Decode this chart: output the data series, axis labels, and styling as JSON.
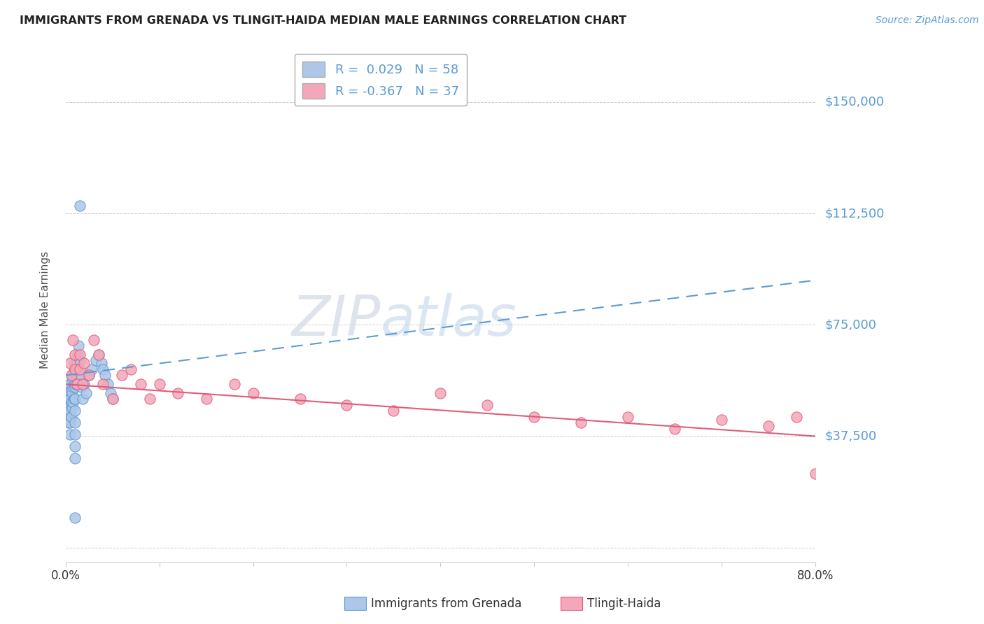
{
  "title": "IMMIGRANTS FROM GRENADA VS TLINGIT-HAIDA MEDIAN MALE EARNINGS CORRELATION CHART",
  "source": "Source: ZipAtlas.com",
  "ylabel": "Median Male Earnings",
  "yticks": [
    0,
    37500,
    75000,
    112500,
    150000
  ],
  "ytick_labels": [
    "",
    "$37,500",
    "$75,000",
    "$112,500",
    "$150,000"
  ],
  "xlim": [
    0.0,
    0.8
  ],
  "ylim": [
    -5000,
    165000
  ],
  "legend1_label": "R =  0.029   N = 58",
  "legend2_label": "R = -0.367   N = 37",
  "legend1_color": "#aec6e8",
  "legend2_color": "#f4a7b9",
  "line1_color": "#5b9bd5",
  "line2_color": "#e05c7a",
  "background": "#ffffff",
  "blue_line_y0": 58000,
  "blue_line_y1": 90000,
  "pink_line_y0": 55000,
  "pink_line_y1": 37500,
  "blue_x": [
    0.003,
    0.003,
    0.003,
    0.003,
    0.004,
    0.004,
    0.004,
    0.005,
    0.005,
    0.005,
    0.005,
    0.005,
    0.006,
    0.006,
    0.006,
    0.007,
    0.007,
    0.007,
    0.008,
    0.008,
    0.008,
    0.009,
    0.009,
    0.009,
    0.01,
    0.01,
    0.01,
    0.01,
    0.01,
    0.01,
    0.01,
    0.01,
    0.01,
    0.011,
    0.011,
    0.012,
    0.012,
    0.013,
    0.013,
    0.014,
    0.015,
    0.016,
    0.017,
    0.018,
    0.02,
    0.022,
    0.025,
    0.028,
    0.032,
    0.035,
    0.038,
    0.04,
    0.042,
    0.045,
    0.048,
    0.05,
    0.015,
    0.01
  ],
  "blue_y": [
    52000,
    48000,
    45000,
    42000,
    50000,
    47000,
    43000,
    55000,
    50000,
    46000,
    42000,
    38000,
    53000,
    49000,
    44000,
    57000,
    52000,
    47000,
    58000,
    54000,
    49000,
    60000,
    55000,
    50000,
    62000,
    58000,
    54000,
    50000,
    46000,
    42000,
    38000,
    34000,
    30000,
    60000,
    55000,
    62000,
    57000,
    65000,
    60000,
    68000,
    63000,
    58000,
    54000,
    50000,
    55000,
    52000,
    58000,
    60000,
    63000,
    65000,
    62000,
    60000,
    58000,
    55000,
    52000,
    50000,
    115000,
    10000
  ],
  "pink_x": [
    0.005,
    0.006,
    0.008,
    0.01,
    0.01,
    0.012,
    0.015,
    0.015,
    0.018,
    0.02,
    0.025,
    0.03,
    0.035,
    0.04,
    0.05,
    0.06,
    0.07,
    0.08,
    0.09,
    0.1,
    0.12,
    0.15,
    0.18,
    0.2,
    0.25,
    0.3,
    0.35,
    0.4,
    0.45,
    0.5,
    0.55,
    0.6,
    0.65,
    0.7,
    0.75,
    0.78,
    0.8
  ],
  "pink_y": [
    62000,
    58000,
    70000,
    65000,
    60000,
    55000,
    65000,
    60000,
    55000,
    62000,
    58000,
    70000,
    65000,
    55000,
    50000,
    58000,
    60000,
    55000,
    50000,
    55000,
    52000,
    50000,
    55000,
    52000,
    50000,
    48000,
    46000,
    52000,
    48000,
    44000,
    42000,
    44000,
    40000,
    43000,
    41000,
    44000,
    25000
  ]
}
